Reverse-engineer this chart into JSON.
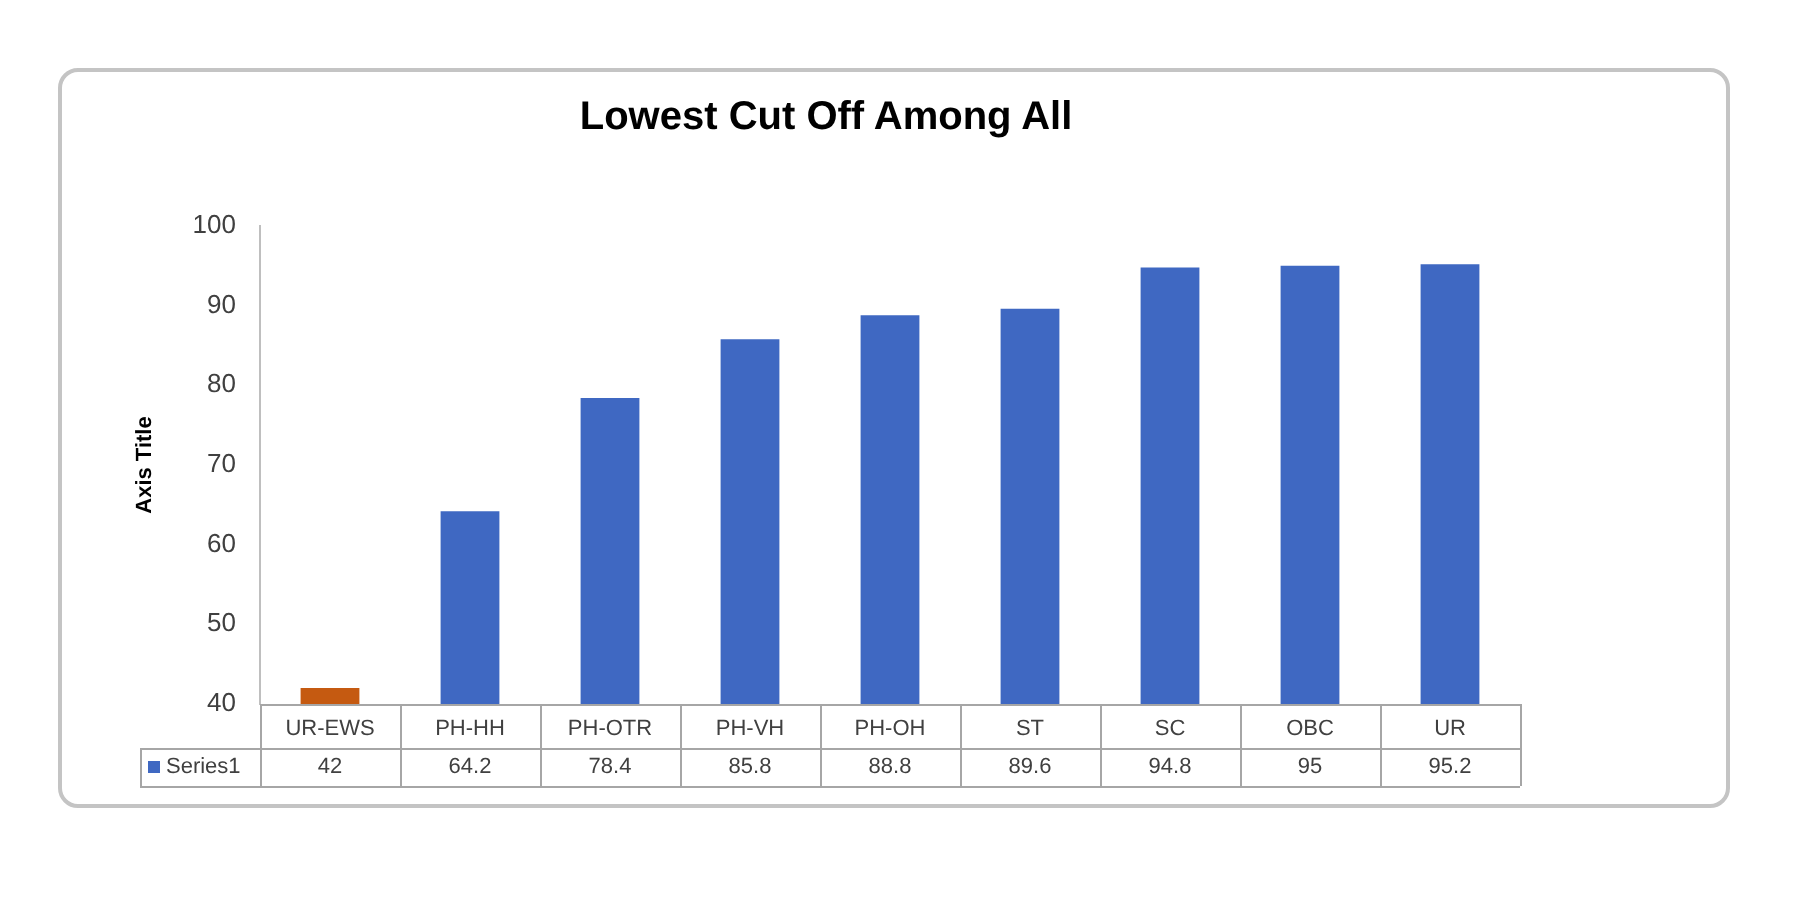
{
  "chart_data": {
    "type": "bar",
    "title": "Lowest Cut Off Among All",
    "ylabel": "Axis Title",
    "categories": [
      "UR-EWS",
      "PH-HH",
      "PH-OTR",
      "PH-VH",
      "PH-OH",
      "ST",
      "SC",
      "OBC",
      "UR"
    ],
    "series": [
      {
        "name": "Series1",
        "color": "#3f68c2",
        "colors": [
          "#c55a11",
          "#3f68c2",
          "#3f68c2",
          "#3f68c2",
          "#3f68c2",
          "#3f68c2",
          "#3f68c2",
          "#3f68c2",
          "#3f68c2"
        ],
        "values": [
          42,
          64.2,
          78.4,
          85.8,
          88.8,
          89.6,
          94.8,
          95,
          95.2
        ]
      }
    ],
    "ylim": [
      40,
      100
    ],
    "yticks": [
      40,
      50,
      60,
      70,
      80,
      90,
      100
    ],
    "grid": false,
    "legend": "bottom left",
    "data_labels": true
  }
}
